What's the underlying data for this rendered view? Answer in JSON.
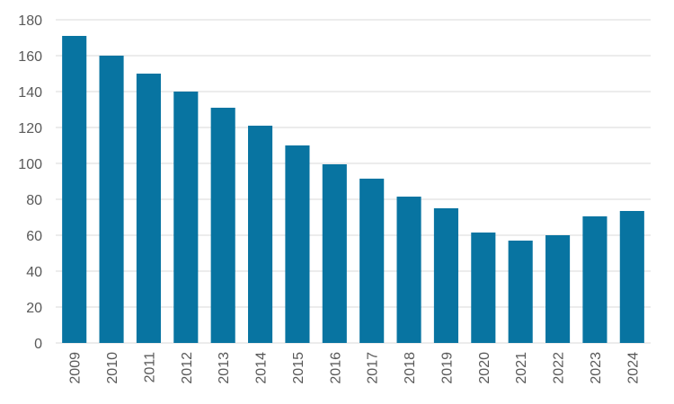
{
  "chart_data": {
    "type": "bar",
    "title": "",
    "xlabel": "",
    "ylabel": "",
    "ylim": [
      0,
      180
    ],
    "y_ticks": [
      0,
      20,
      40,
      60,
      80,
      100,
      120,
      140,
      160,
      180
    ],
    "grid": true,
    "legend": "none",
    "bar_color": "#0874a1",
    "categories": [
      "2009",
      "2010",
      "2011",
      "2012",
      "2013",
      "2014",
      "2015",
      "2016",
      "2017",
      "2018",
      "2019",
      "2020",
      "2021",
      "2022",
      "2023",
      "2024"
    ],
    "values": [
      171,
      160,
      150,
      140,
      131,
      121,
      110,
      99.5,
      91.5,
      81.5,
      75,
      61.5,
      57,
      60,
      70.5,
      73.5
    ]
  }
}
